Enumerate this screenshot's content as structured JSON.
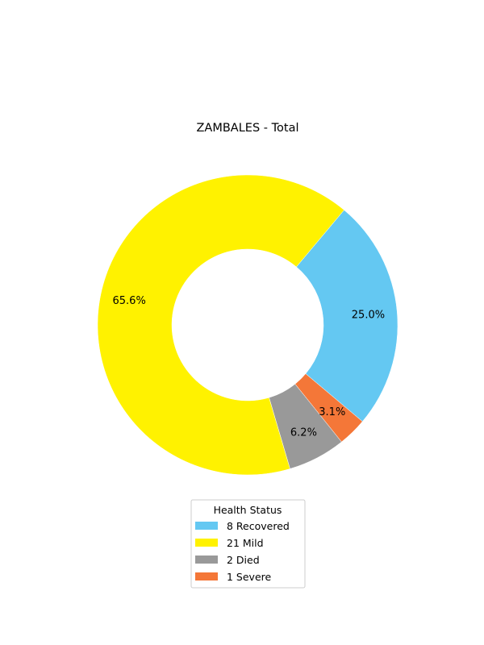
{
  "chart_data": {
    "type": "pie",
    "donut": true,
    "title": "ZAMBALES - Total",
    "legend_title": "Health Status",
    "legend_position": "bottom-center",
    "slices": [
      {
        "label": "Recovered",
        "count": 8,
        "value": 25.0,
        "pct_label": "25.0%",
        "legend_label": "8  Recovered",
        "color": "#64c8f2"
      },
      {
        "label": "Severe",
        "count": 1,
        "value": 3.1,
        "pct_label": "3.1%",
        "legend_label": "1  Severe",
        "color": "#f47738"
      },
      {
        "label": "Died",
        "count": 2,
        "value": 6.2,
        "pct_label": "6.2%",
        "legend_label": "2  Died",
        "color": "#999999"
      },
      {
        "label": "Mild",
        "count": 21,
        "value": 65.6,
        "pct_label": "65.6%",
        "legend_label": "21  Mild",
        "color": "#fff200"
      }
    ],
    "legend_order": [
      "Recovered",
      "Mild",
      "Died",
      "Severe"
    ]
  }
}
